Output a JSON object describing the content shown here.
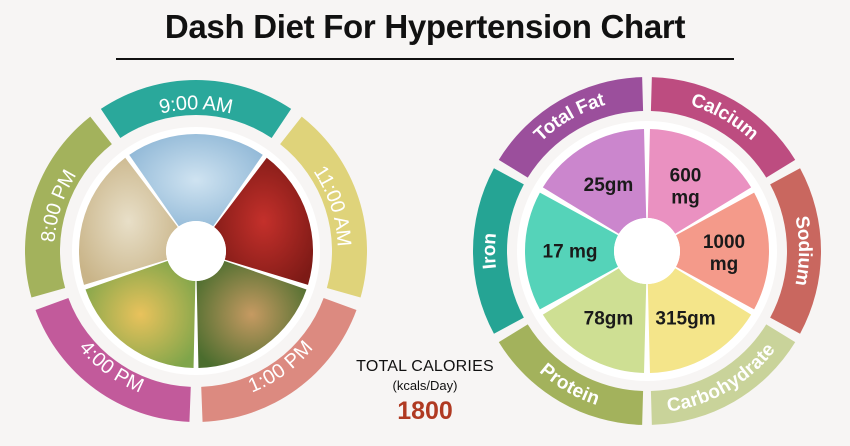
{
  "title": "Dash Diet For Hypertension Chart",
  "colors": {
    "teal": "#2aa89b",
    "yellow": "#dfd37a",
    "salmon": "#dc8a80",
    "pink": "#c25a9b",
    "olive": "#a3b25c",
    "purple": "#9b4f9c",
    "magenta": "#bd4c80",
    "rust": "#c9675f",
    "sage": "#c9d39a",
    "teal2": "#25a494",
    "fat_fill": "#cb86cd",
    "calcium_fill": "#ea91c1",
    "sodium_fill": "#f49a8a",
    "carb_fill": "#f4e58a",
    "protein_fill": "#cedf93",
    "iron_fill": "#55d3b9"
  },
  "meal_schedule": [
    {
      "time": "9:00 AM",
      "color": "#2aa89b",
      "food": "milk-glass"
    },
    {
      "time": "11:00 AM",
      "color": "#dfd37a",
      "food": "apples"
    },
    {
      "time": "1:00 PM",
      "color": "#dc8a80",
      "food": "flatbread-greens"
    },
    {
      "time": "4:00 PM",
      "color": "#c25a9b",
      "food": "vegetable-soup"
    },
    {
      "time": "8:00 PM",
      "color": "#a3b25c",
      "food": "pasta"
    }
  ],
  "nutrients": [
    {
      "name": "Total Fat",
      "value": "25gm",
      "ring_color": "#9b4f9c",
      "fill": "#cb86cd"
    },
    {
      "name": "Calcium",
      "value": "600\nmg",
      "ring_color": "#bd4c80",
      "fill": "#ea91c1"
    },
    {
      "name": "Sodium",
      "value": "1000\nmg",
      "ring_color": "#c9675f",
      "fill": "#f49a8a"
    },
    {
      "name": "Carbohydrate",
      "value": "315gm",
      "ring_color": "#c9d39a",
      "fill": "#f4e58a"
    },
    {
      "name": "Protein",
      "value": "78gm",
      "ring_color": "#a3b25c",
      "fill": "#cedf93"
    },
    {
      "name": "Iron",
      "value": "17 mg",
      "ring_color": "#25a494",
      "fill": "#55d3b9"
    }
  ],
  "calories": {
    "label": "TOTAL CALORIES",
    "unit": "(kcals/Day)",
    "value": "1800"
  }
}
